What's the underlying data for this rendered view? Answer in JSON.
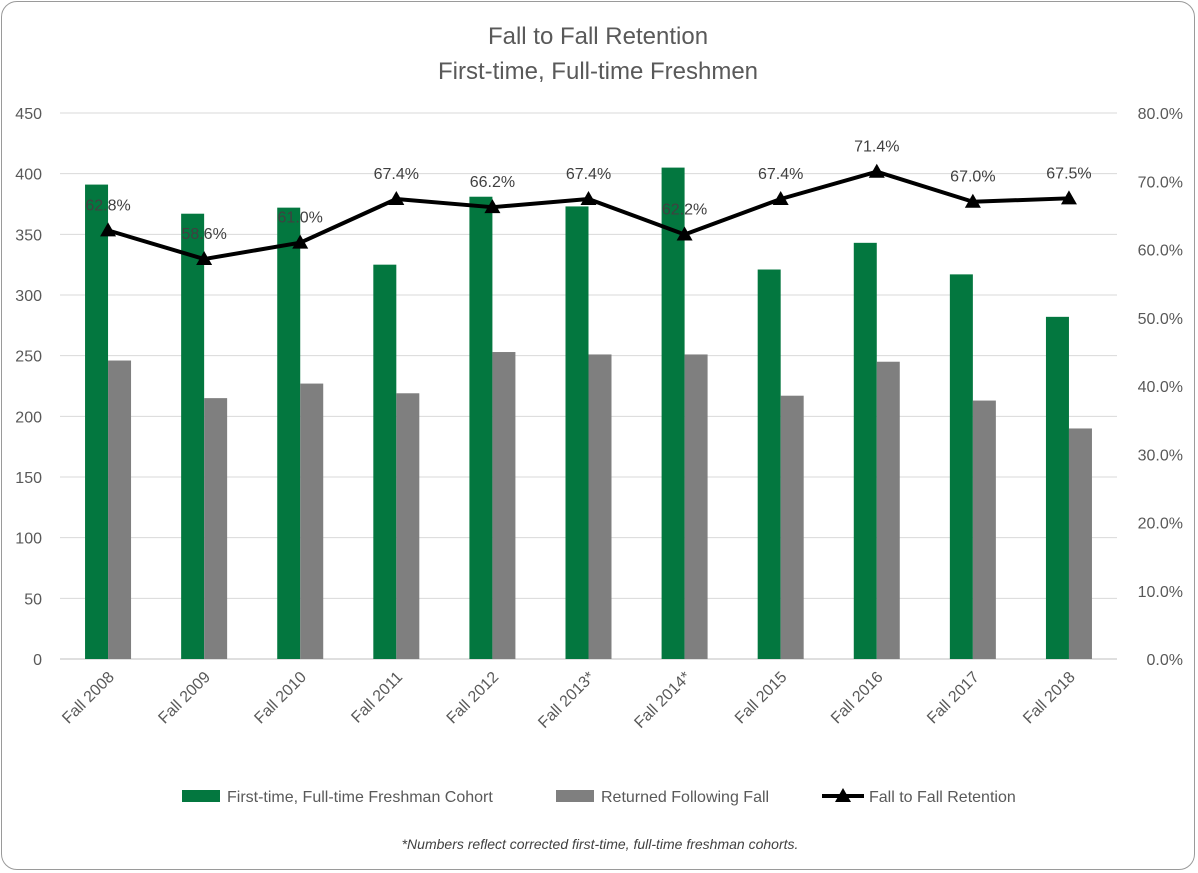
{
  "chart_data": {
    "type": "bar",
    "title": "Fall to Fall Retention",
    "subtitle": "First-time, Full-time Freshmen",
    "categories": [
      "Fall 2008",
      "Fall 2009",
      "Fall 2010",
      "Fall 2011",
      "Fall 2012",
      "Fall 2013*",
      "Fall 2014*",
      "Fall 2015",
      "Fall 2016",
      "Fall 2017",
      "Fall 2018"
    ],
    "series": [
      {
        "name": "First-time, Full-time Freshman Cohort",
        "type": "bar",
        "axis": "left",
        "color": "#03773f",
        "values": [
          391,
          367,
          372,
          325,
          381,
          373,
          405,
          321,
          343,
          317,
          282
        ]
      },
      {
        "name": "Returned Following Fall",
        "type": "bar",
        "axis": "left",
        "color": "#7f7f7f",
        "values": [
          246,
          215,
          227,
          219,
          253,
          251,
          251,
          217,
          245,
          213,
          190
        ]
      },
      {
        "name": "Fall to Fall Retention",
        "type": "line",
        "axis": "right",
        "color": "#000000",
        "marker": "triangle",
        "values": [
          62.8,
          58.6,
          61.0,
          67.4,
          66.2,
          67.4,
          62.2,
          67.4,
          71.4,
          67.0,
          67.5
        ],
        "labels": [
          "62.8%",
          "58.6%",
          "61.0%",
          "67.4%",
          "66.2%",
          "67.4%",
          "62.2%",
          "67.4%",
          "71.4%",
          "67.0%",
          "67.5%"
        ]
      }
    ],
    "y_left": {
      "min": 0,
      "max": 450,
      "ticks": [
        "0",
        "50",
        "100",
        "150",
        "200",
        "250",
        "300",
        "350",
        "400",
        "450"
      ]
    },
    "y_right": {
      "min": 0,
      "max": 80,
      "ticks": [
        "0.0%",
        "10.0%",
        "20.0%",
        "30.0%",
        "40.0%",
        "50.0%",
        "60.0%",
        "70.0%",
        "80.0%"
      ]
    },
    "grid": true,
    "legend_position": "bottom",
    "footnote": "*Numbers reflect corrected first-time, full-time freshman cohorts."
  }
}
